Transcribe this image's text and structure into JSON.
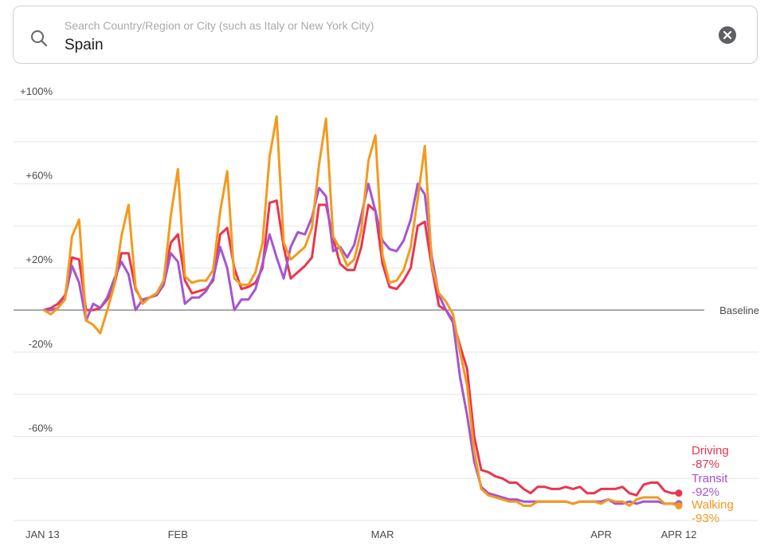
{
  "search": {
    "placeholder": "Search Country/Region or City (such as Italy or New York City)",
    "value": "Spain"
  },
  "icons": {
    "search": "search-icon",
    "clear": "close-circle-icon"
  },
  "chart_data": {
    "type": "line",
    "title": "",
    "xlabel": "",
    "ylabel": "",
    "x_start": "JAN 13",
    "x_end": "APR 12",
    "x_ticks": [
      {
        "label": "JAN 13",
        "day": 0
      },
      {
        "label": "FEB",
        "day": 19
      },
      {
        "label": "MAR",
        "day": 48
      },
      {
        "label": "APR",
        "day": 79
      },
      {
        "label": "APR 12",
        "day": 90
      }
    ],
    "y_ticks": [
      {
        "label": "+100%",
        "value": 100
      },
      {
        "label": "+60%",
        "value": 60
      },
      {
        "label": "+20%",
        "value": 20
      },
      {
        "label": "-20%",
        "value": -20
      },
      {
        "label": "-60%",
        "value": -60
      }
    ],
    "y_gridlines": [
      100,
      80,
      60,
      40,
      20,
      -20,
      -40,
      -60,
      -80,
      -100
    ],
    "ylim": [
      -100,
      100
    ],
    "baseline_label": "Baseline",
    "grid": true,
    "series": [
      {
        "name": "Driving",
        "final_label": "-87%",
        "color": "#e8364f",
        "values": [
          0,
          1,
          3,
          7,
          25,
          24,
          0,
          0,
          1,
          5,
          12,
          27,
          27,
          10,
          4,
          6,
          8,
          14,
          32,
          36,
          14,
          8,
          9,
          10,
          14,
          36,
          39,
          20,
          10,
          11,
          13,
          20,
          51,
          52,
          30,
          15,
          18,
          21,
          25,
          50,
          50,
          34,
          22,
          19,
          19,
          30,
          50,
          47,
          22,
          11,
          10,
          14,
          20,
          40,
          42,
          20,
          2,
          0,
          -5,
          -17,
          -28,
          -60,
          -76,
          -77,
          -79,
          -80,
          -82,
          -82,
          -85,
          -87,
          -84,
          -84,
          -85,
          -85,
          -84,
          -85,
          -84,
          -87,
          -87,
          -85,
          -85,
          -85,
          -84,
          -87,
          -88,
          -83,
          -82,
          -82,
          -86,
          -87,
          -87
        ]
      },
      {
        "name": "Transit",
        "final_label": "-92%",
        "color": "#a555d1",
        "values": [
          0,
          0,
          1,
          6,
          21,
          13,
          -5,
          3,
          1,
          6,
          15,
          23,
          17,
          0,
          5,
          6,
          7,
          12,
          27,
          23,
          3,
          6,
          6,
          9,
          15,
          30,
          20,
          0,
          5,
          5,
          10,
          22,
          36,
          25,
          15,
          30,
          37,
          36,
          44,
          58,
          54,
          28,
          30,
          25,
          31,
          45,
          60,
          47,
          33,
          29,
          28,
          33,
          43,
          60,
          55,
          25,
          7,
          0,
          -6,
          -32,
          -50,
          -72,
          -84,
          -87,
          -88,
          -89,
          -90,
          -90,
          -91,
          -91,
          -91,
          -91,
          -91,
          -91,
          -91,
          -92,
          -91,
          -91,
          -91,
          -91,
          -90,
          -92,
          -92,
          -91,
          -92,
          -91,
          -91,
          -91,
          -92,
          -92,
          -92
        ]
      },
      {
        "name": "Walking",
        "final_label": "-93%",
        "color": "#f39a1e",
        "values": [
          0,
          -2,
          1,
          5,
          35,
          43,
          -5,
          -7,
          -11,
          0,
          12,
          35,
          50,
          11,
          3,
          6,
          8,
          14,
          45,
          67,
          16,
          13,
          14,
          14,
          19,
          47,
          66,
          15,
          12,
          12,
          18,
          32,
          73,
          92,
          32,
          24,
          27,
          30,
          39,
          69,
          91,
          35,
          29,
          21,
          24,
          38,
          71,
          83,
          26,
          13,
          14,
          19,
          30,
          53,
          78,
          21,
          8,
          4,
          -2,
          -20,
          -36,
          -67,
          -85,
          -88,
          -89,
          -90,
          -91,
          -91,
          -93,
          -93,
          -91,
          -91,
          -91,
          -91,
          -91,
          -92,
          -91,
          -91,
          -91,
          -92,
          -90,
          -91,
          -91,
          -93,
          -90,
          -89,
          -89,
          -89,
          -92,
          -92,
          -93
        ]
      }
    ]
  }
}
